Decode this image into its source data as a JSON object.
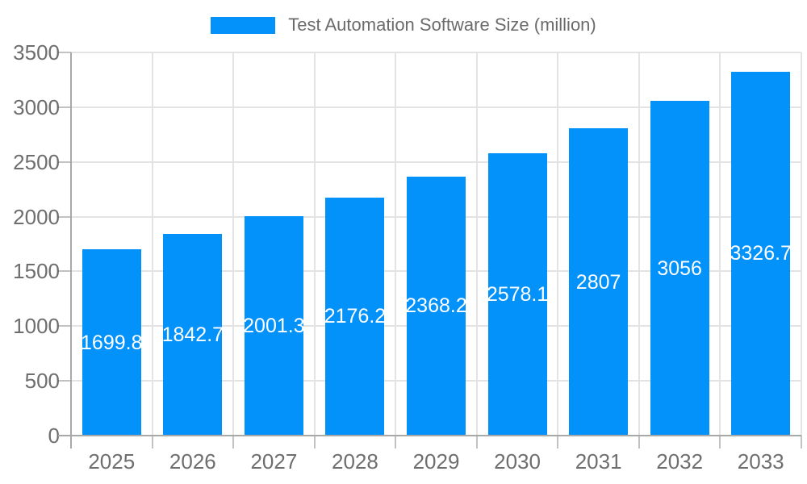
{
  "legend": {
    "label": "Test Automation Software Size (million)"
  },
  "chart_data": {
    "type": "bar",
    "title": "Test Automation Software Size (million)",
    "categories": [
      "2025",
      "2026",
      "2027",
      "2028",
      "2029",
      "2030",
      "2031",
      "2032",
      "2033"
    ],
    "values": [
      1699.8,
      1842.7,
      2001.3,
      2176.2,
      2368.2,
      2578.1,
      2807,
      3056,
      3326.7
    ],
    "xlabel": "",
    "ylabel": "",
    "ylim": [
      0,
      3500
    ],
    "yticks": [
      0,
      500,
      1000,
      1500,
      2000,
      2500,
      3000,
      3500
    ],
    "grid": true,
    "legend_position": "top",
    "colors": {
      "bar": "#0391fa",
      "bar_label": "#ffffff",
      "grid": "#e3e3e3",
      "axis": "#a8a8a8",
      "tick": "#c2c2c2",
      "tick_label": "#6e6e6e",
      "legend_text": "#6b6b6b",
      "background": "#ffffff"
    }
  }
}
